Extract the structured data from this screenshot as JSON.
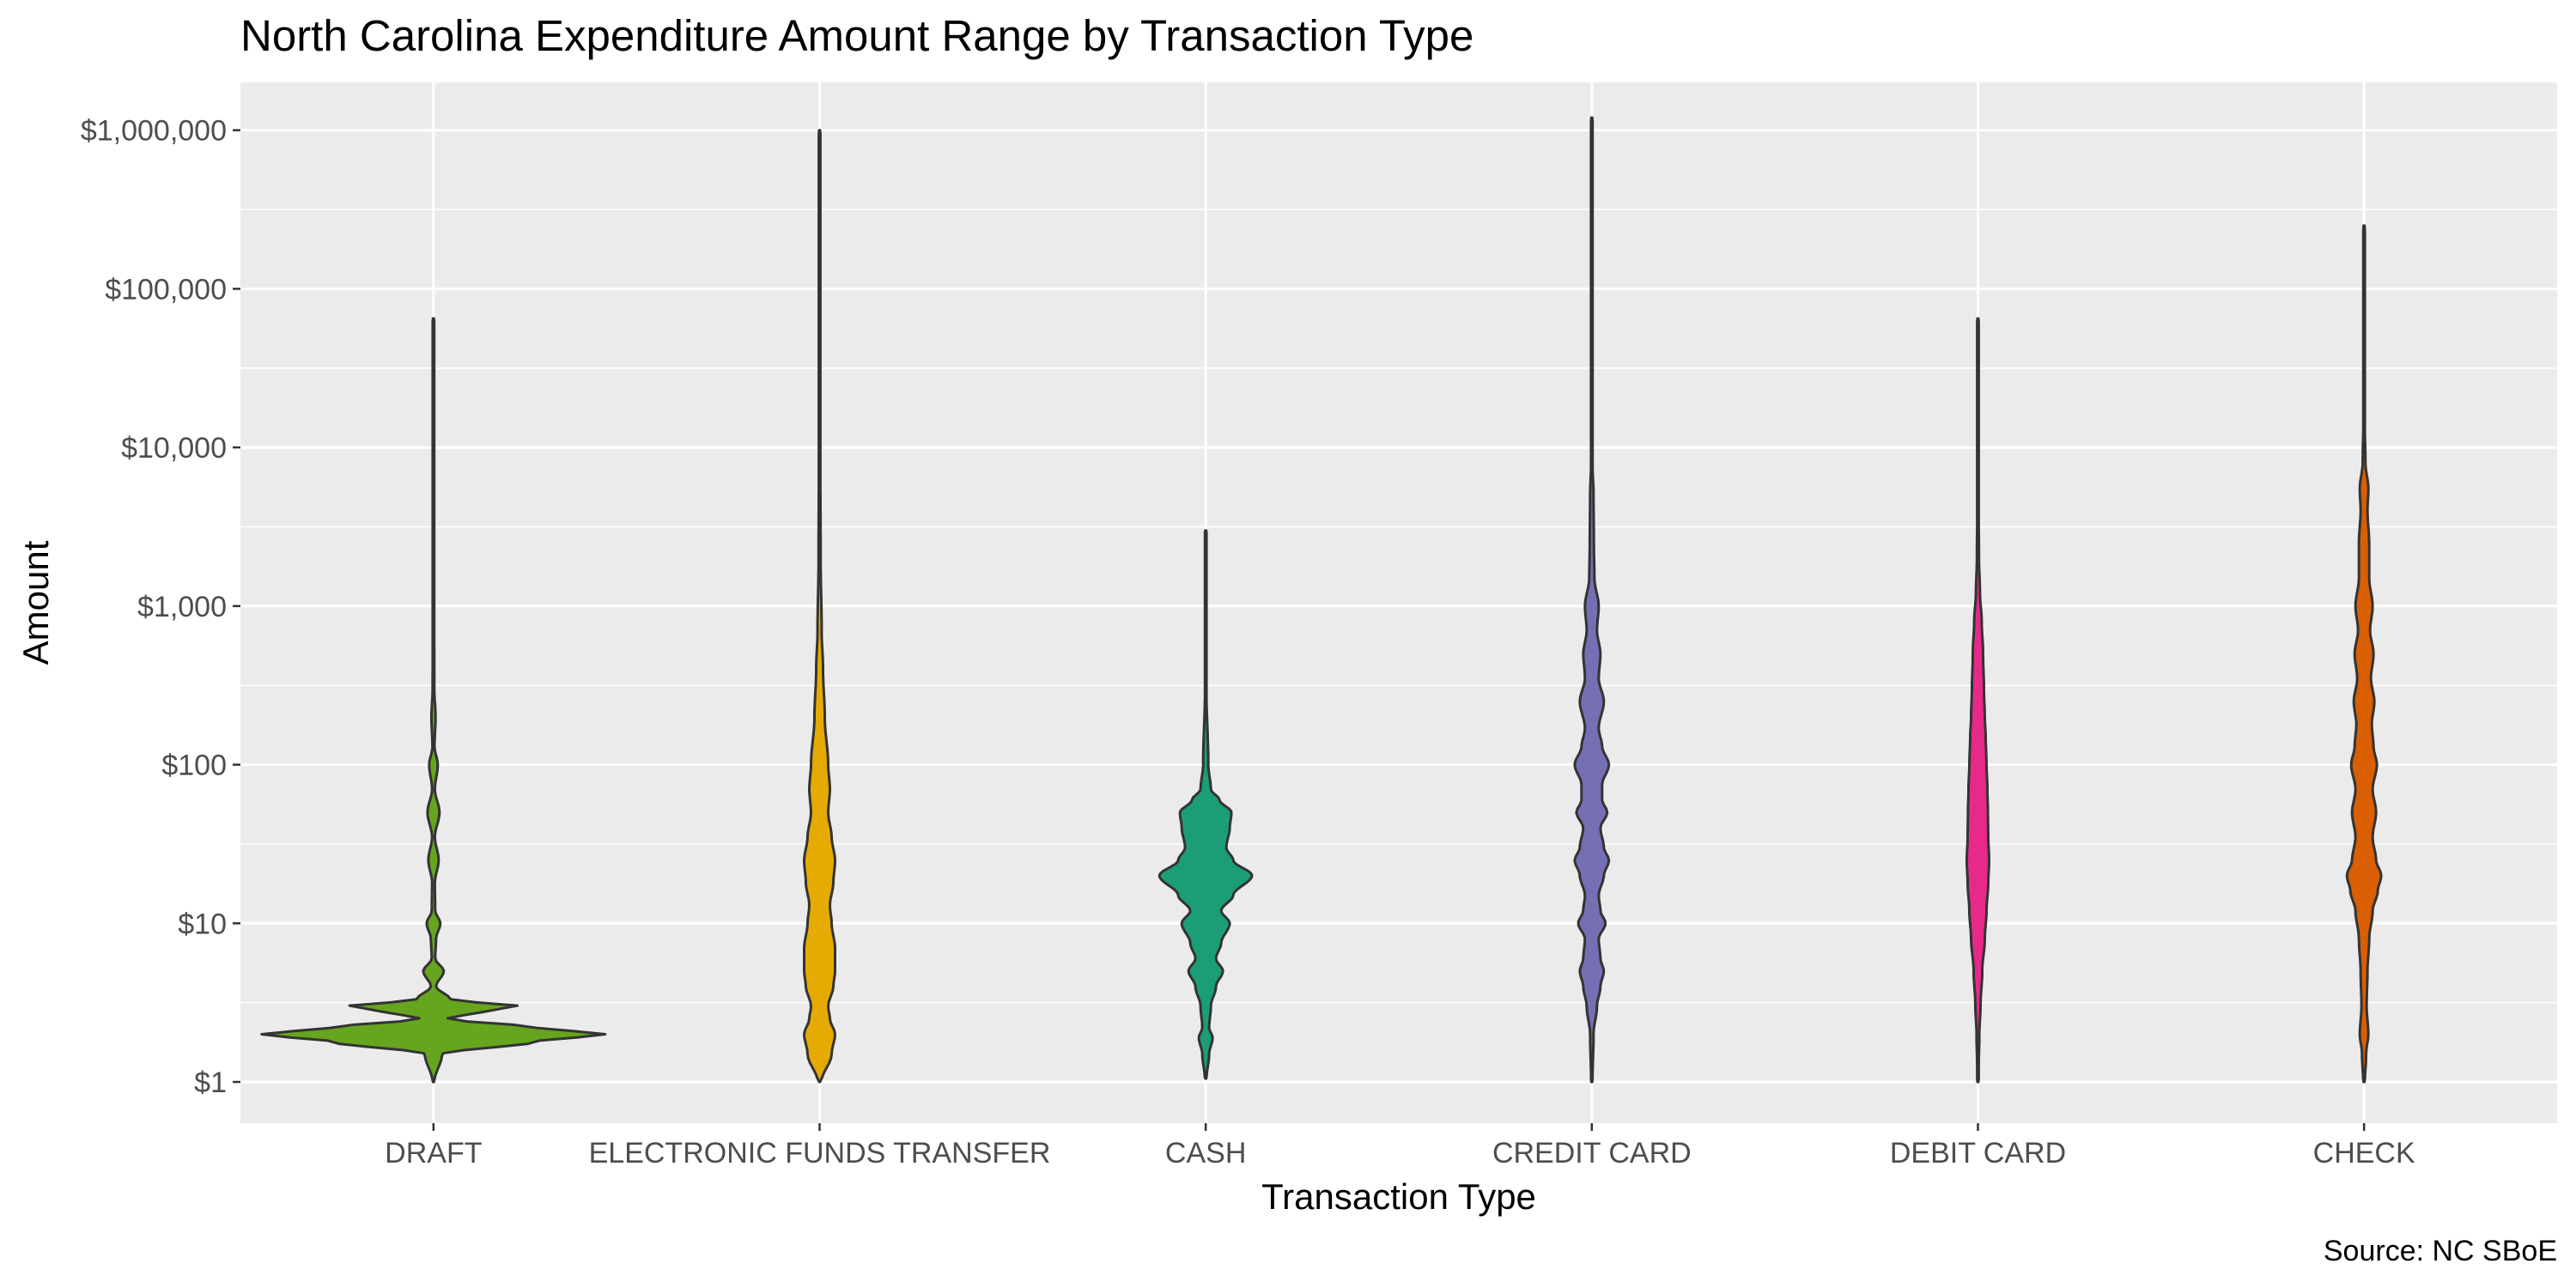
{
  "chart_data": {
    "type": "violin",
    "title": "North Carolina Expenditure Amount Range by Transaction Type",
    "xlabel": "Transaction Type",
    "ylabel": "Amount",
    "caption": "Source: NC SBoE",
    "y_scale": "log10",
    "ylim": [
      0.55,
      2000000
    ],
    "y_ticks": [
      1,
      10,
      100,
      1000,
      10000,
      100000,
      1000000
    ],
    "y_tick_labels": [
      "$1",
      "$10",
      "$100",
      "$1,000",
      "$10,000",
      "$100,000",
      "$1,000,000"
    ],
    "grid": true,
    "legend": "none",
    "categories": [
      "DRAFT",
      "ELECTRONIC FUNDS TRANSFER",
      "CASH",
      "CREDIT CARD",
      "DEBIT CARD",
      "CHECK"
    ],
    "series": [
      {
        "category": "DRAFT",
        "color": "#66A61E",
        "min": 1,
        "max": 65000,
        "density": [
          [
            1,
            0.005
          ],
          [
            1.5,
            0.05
          ],
          [
            1.8,
            0.6
          ],
          [
            2,
            1.0
          ],
          [
            2.2,
            0.6
          ],
          [
            2.5,
            0.08
          ],
          [
            2.8,
            0.3
          ],
          [
            3,
            0.5
          ],
          [
            3.3,
            0.1
          ],
          [
            4,
            0.015
          ],
          [
            5,
            0.06
          ],
          [
            6,
            0.01
          ],
          [
            8,
            0.015
          ],
          [
            10,
            0.04
          ],
          [
            12,
            0.01
          ],
          [
            18,
            0.008
          ],
          [
            25,
            0.03
          ],
          [
            35,
            0.008
          ],
          [
            50,
            0.035
          ],
          [
            70,
            0.008
          ],
          [
            100,
            0.025
          ],
          [
            130,
            0.006
          ],
          [
            200,
            0.012
          ],
          [
            300,
            0.005
          ],
          [
            1000,
            0.004
          ],
          [
            10000,
            0.002
          ],
          [
            65000,
            0.002
          ]
        ]
      },
      {
        "category": "ELECTRONIC FUNDS TRANSFER",
        "color": "#E6AB02",
        "min": 1,
        "max": 1000000,
        "density": [
          [
            1,
            0.01
          ],
          [
            1.5,
            0.07
          ],
          [
            2,
            0.09
          ],
          [
            2.5,
            0.06
          ],
          [
            3,
            0.05
          ],
          [
            4,
            0.08
          ],
          [
            5,
            0.09
          ],
          [
            7,
            0.09
          ],
          [
            10,
            0.07
          ],
          [
            13,
            0.06
          ],
          [
            18,
            0.08
          ],
          [
            25,
            0.09
          ],
          [
            35,
            0.07
          ],
          [
            50,
            0.05
          ],
          [
            70,
            0.06
          ],
          [
            100,
            0.05
          ],
          [
            200,
            0.03
          ],
          [
            400,
            0.02
          ],
          [
            700,
            0.012
          ],
          [
            2000,
            0.006
          ],
          [
            10000,
            0.004
          ],
          [
            100000,
            0.002
          ],
          [
            1000000,
            0.002
          ]
        ]
      },
      {
        "category": "CASH",
        "color": "#1B9E77",
        "min": 1.05,
        "max": 3000,
        "density": [
          [
            1.05,
            0.005
          ],
          [
            1.5,
            0.02
          ],
          [
            1.9,
            0.04
          ],
          [
            2.2,
            0.02
          ],
          [
            3,
            0.03
          ],
          [
            4,
            0.06
          ],
          [
            5,
            0.1
          ],
          [
            6,
            0.06
          ],
          [
            7.5,
            0.09
          ],
          [
            10,
            0.14
          ],
          [
            12,
            0.09
          ],
          [
            15,
            0.16
          ],
          [
            20,
            0.27
          ],
          [
            25,
            0.16
          ],
          [
            30,
            0.12
          ],
          [
            40,
            0.14
          ],
          [
            50,
            0.15
          ],
          [
            60,
            0.08
          ],
          [
            70,
            0.03
          ],
          [
            100,
            0.015
          ],
          [
            300,
            0.004
          ],
          [
            3000,
            0.002
          ]
        ]
      },
      {
        "category": "CREDIT CARD",
        "color": "#7570B3",
        "min": 1,
        "max": 1200000,
        "density": [
          [
            1,
            0.004
          ],
          [
            2,
            0.01
          ],
          [
            3,
            0.03
          ],
          [
            4,
            0.05
          ],
          [
            5,
            0.07
          ],
          [
            6,
            0.05
          ],
          [
            8,
            0.04
          ],
          [
            10,
            0.08
          ],
          [
            12,
            0.05
          ],
          [
            15,
            0.04
          ],
          [
            20,
            0.07
          ],
          [
            25,
            0.1
          ],
          [
            30,
            0.07
          ],
          [
            40,
            0.05
          ],
          [
            50,
            0.09
          ],
          [
            60,
            0.06
          ],
          [
            75,
            0.06
          ],
          [
            100,
            0.1
          ],
          [
            130,
            0.06
          ],
          [
            170,
            0.04
          ],
          [
            250,
            0.07
          ],
          [
            350,
            0.04
          ],
          [
            500,
            0.05
          ],
          [
            700,
            0.03
          ],
          [
            1000,
            0.04
          ],
          [
            1500,
            0.015
          ],
          [
            2500,
            0.012
          ],
          [
            5000,
            0.01
          ],
          [
            8000,
            0.004
          ],
          [
            100000,
            0.002
          ],
          [
            1200000,
            0.002
          ]
        ]
      },
      {
        "category": "DEBIT CARD",
        "color": "#E7298A",
        "min": 1,
        "max": 65000,
        "density": [
          [
            1,
            0.003
          ],
          [
            2,
            0.008
          ],
          [
            3,
            0.015
          ],
          [
            5,
            0.025
          ],
          [
            8,
            0.04
          ],
          [
            12,
            0.05
          ],
          [
            18,
            0.06
          ],
          [
            25,
            0.065
          ],
          [
            35,
            0.06
          ],
          [
            50,
            0.058
          ],
          [
            70,
            0.055
          ],
          [
            100,
            0.05
          ],
          [
            150,
            0.045
          ],
          [
            200,
            0.04
          ],
          [
            300,
            0.035
          ],
          [
            500,
            0.03
          ],
          [
            800,
            0.022
          ],
          [
            1200,
            0.012
          ],
          [
            2000,
            0.006
          ],
          [
            5000,
            0.003
          ],
          [
            65000,
            0.002
          ]
        ]
      },
      {
        "category": "CHECK",
        "color": "#D95F02",
        "min": 1,
        "max": 250000,
        "density": [
          [
            1,
            0.005
          ],
          [
            1.5,
            0.012
          ],
          [
            2,
            0.025
          ],
          [
            3,
            0.015
          ],
          [
            5,
            0.02
          ],
          [
            8,
            0.03
          ],
          [
            12,
            0.05
          ],
          [
            16,
            0.08
          ],
          [
            20,
            0.1
          ],
          [
            25,
            0.07
          ],
          [
            35,
            0.05
          ],
          [
            50,
            0.07
          ],
          [
            70,
            0.05
          ],
          [
            100,
            0.075
          ],
          [
            130,
            0.055
          ],
          [
            180,
            0.045
          ],
          [
            250,
            0.06
          ],
          [
            350,
            0.04
          ],
          [
            500,
            0.055
          ],
          [
            700,
            0.035
          ],
          [
            1000,
            0.05
          ],
          [
            1500,
            0.03
          ],
          [
            2500,
            0.03
          ],
          [
            4000,
            0.02
          ],
          [
            5500,
            0.025
          ],
          [
            8000,
            0.008
          ],
          [
            15000,
            0.004
          ],
          [
            250000,
            0.002
          ]
        ]
      }
    ]
  }
}
